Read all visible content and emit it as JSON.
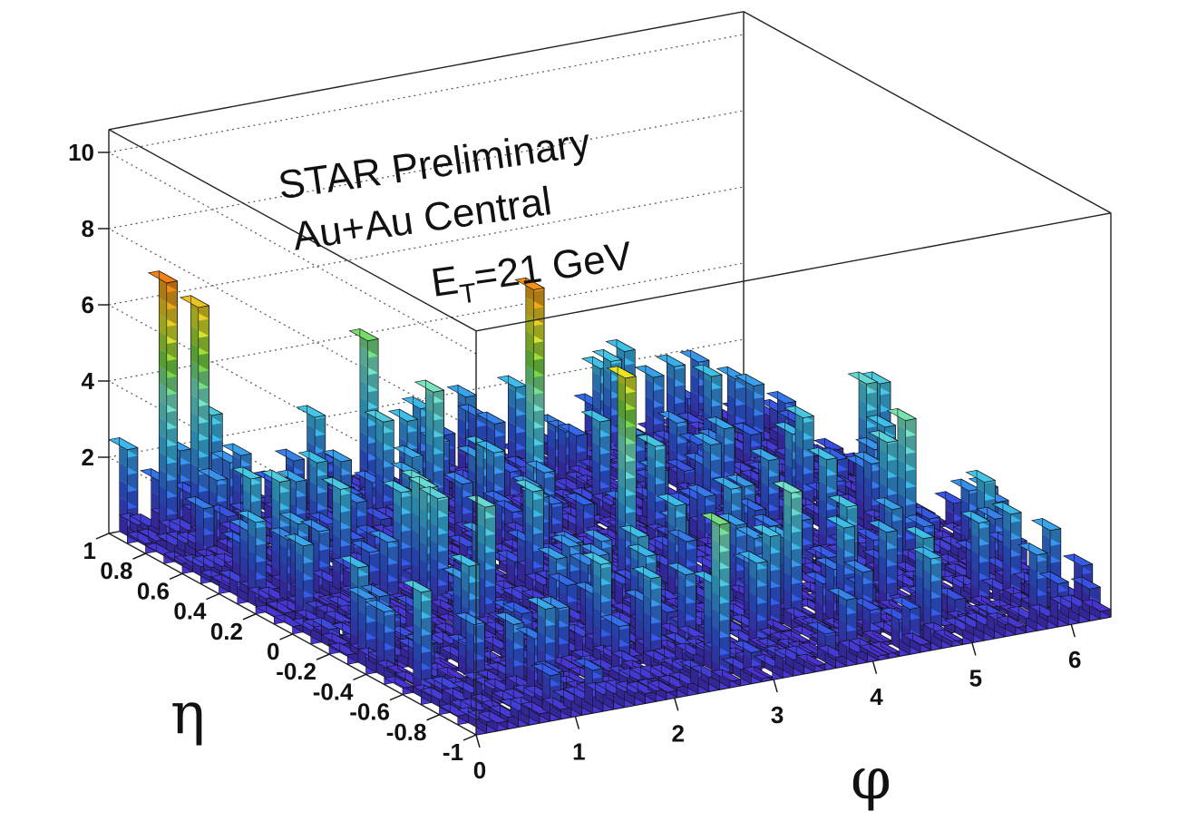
{
  "chart_data": {
    "type": "lego3d",
    "title": "",
    "annotations": {
      "line1": "STAR Preliminary",
      "line2": "Au+Au Central",
      "et_prefix": "E",
      "et_sub": "T",
      "et_value": "=21 GeV"
    },
    "xlabel": "φ",
    "ylabel": "η",
    "zlabel": "",
    "xlim": [
      0,
      6.4
    ],
    "ylim": [
      -1,
      1
    ],
    "zlim": [
      0,
      10.6
    ],
    "x_ticks": [
      "0",
      "1",
      "2",
      "3",
      "4",
      "5",
      "6"
    ],
    "y_ticks": [
      "1",
      "0.8",
      "0.6",
      "0.4",
      "0.2",
      "0",
      "-0.2",
      "-0.4",
      "-0.6",
      "-0.8",
      "-1"
    ],
    "z_ticks": [
      "2",
      "4",
      "6",
      "8",
      "10"
    ],
    "highlighted_towers": [
      {
        "phi": 0.3,
        "eta": 0.9,
        "value": 7.0
      },
      {
        "phi": 0.55,
        "eta": 0.9,
        "value": 6.2
      },
      {
        "phi": 2.3,
        "eta": 0.9,
        "value": 4.5
      },
      {
        "phi": 3.0,
        "eta": 0.3,
        "value": 6.8
      },
      {
        "phi": 3.05,
        "eta": -0.2,
        "value": 5.8
      }
    ]
  }
}
